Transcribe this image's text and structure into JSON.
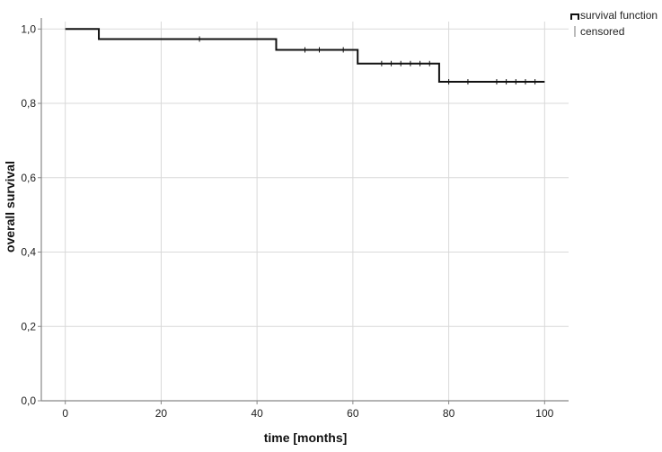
{
  "chart_data": {
    "type": "line",
    "subtype": "kaplan-meier step",
    "xlabel": "time [months]",
    "ylabel": "overall survival",
    "xlim": [
      -5,
      105
    ],
    "ylim": [
      0,
      1.02
    ],
    "x_ticks": [
      0,
      20,
      40,
      60,
      80,
      100
    ],
    "x_tick_labels": [
      "0",
      "20",
      "40",
      "60",
      "80",
      "100"
    ],
    "y_ticks": [
      0,
      0.2,
      0.4,
      0.6,
      0.8,
      1.0
    ],
    "y_tick_labels": [
      "0,0",
      "0,2",
      "0,4",
      "0,6",
      "0,8",
      "1,0"
    ],
    "grid": true,
    "legend_position": "top-right, outside plot",
    "legend": [
      {
        "label": "survival function",
        "kind": "step"
      },
      {
        "label": "censored",
        "kind": "tick"
      }
    ],
    "series": [
      {
        "name": "survival function",
        "color": "#111111",
        "steps": [
          {
            "x": 0,
            "y": 1.0
          },
          {
            "x": 7,
            "y": 0.973
          },
          {
            "x": 44,
            "y": 0.944
          },
          {
            "x": 61,
            "y": 0.907
          },
          {
            "x": 78,
            "y": 0.858
          },
          {
            "x": 100,
            "y": 0.858
          }
        ],
        "censored": [
          {
            "x": 28,
            "y": 0.973
          },
          {
            "x": 50,
            "y": 0.944
          },
          {
            "x": 53,
            "y": 0.944
          },
          {
            "x": 58,
            "y": 0.944
          },
          {
            "x": 66,
            "y": 0.907
          },
          {
            "x": 68,
            "y": 0.907
          },
          {
            "x": 70,
            "y": 0.907
          },
          {
            "x": 72,
            "y": 0.907
          },
          {
            "x": 74,
            "y": 0.907
          },
          {
            "x": 76,
            "y": 0.907
          },
          {
            "x": 80,
            "y": 0.858
          },
          {
            "x": 84,
            "y": 0.858
          },
          {
            "x": 90,
            "y": 0.858
          },
          {
            "x": 92,
            "y": 0.858
          },
          {
            "x": 94,
            "y": 0.858
          },
          {
            "x": 96,
            "y": 0.858
          },
          {
            "x": 98,
            "y": 0.858
          }
        ]
      }
    ],
    "colors": {
      "grid": "#d9d9d9",
      "axis": "#888888",
      "line": "#111111",
      "censored_legend": "#bbbbbb"
    }
  }
}
